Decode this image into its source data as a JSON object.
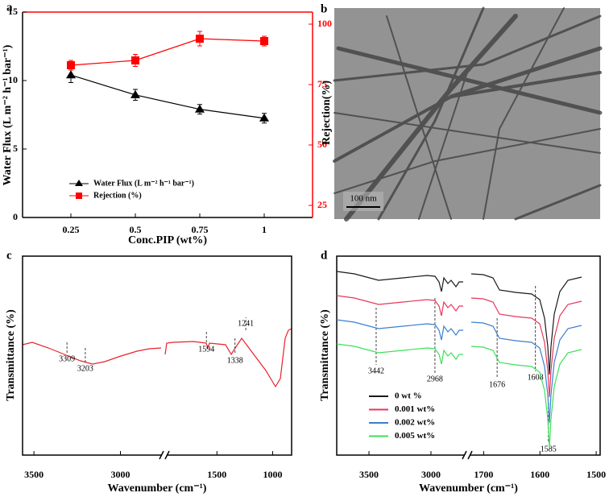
{
  "chart_data": [
    {
      "type": "line",
      "panel_label": "a",
      "x_label": "Conc.PIP  (wt%)",
      "y_label": "Water Flux (L m⁻² h⁻¹ bar⁻¹)",
      "y2_label": "Rejection(%)",
      "categories": [
        "0.25",
        "0.5",
        "0.75",
        "1"
      ],
      "series": [
        {
          "name": "Water Flux (L m⁻² h⁻¹ bar⁻¹)",
          "color": "#000000",
          "marker": "triangle",
          "values": [
            10.4,
            8.95,
            7.9,
            7.25
          ],
          "errors": [
            0.55,
            0.4,
            0.35,
            0.35
          ]
        },
        {
          "name": "Rejection (%)",
          "color": "#ff0000",
          "marker": "square",
          "axis": "y2",
          "values": [
            83,
            85,
            94,
            93
          ],
          "errors": [
            2,
            2.5,
            3,
            2
          ]
        }
      ],
      "ylim": [
        0,
        15
      ],
      "yticks": [
        0,
        5,
        10,
        15
      ],
      "y2lim": [
        20,
        105
      ],
      "y2ticks": [
        25,
        50,
        75,
        100
      ],
      "y2_color": "#ff0000",
      "legend": "lower left"
    },
    {
      "type": "spectrum",
      "panel_label": "c",
      "x_label": "Wavenumber (cm⁻¹)",
      "y_label": "Transmittance (%)",
      "color": "#e8222d",
      "x_segments": [
        {
          "xlim": [
            3566,
            2760
          ],
          "xticks": [
            3500,
            3000
          ]
        },
        {
          "xlim": [
            1950,
            830
          ],
          "xticks": [
            1500,
            1000
          ]
        }
      ],
      "peaks": [
        3309,
        3203,
        1594,
        1338,
        1241
      ]
    },
    {
      "type": "spectrum",
      "panel_label": "d",
      "x_label": "Wavenumber (cm⁻¹)",
      "y_label": "Transmittance (%)",
      "x_segments": [
        {
          "xlim": [
            3760,
            2740
          ],
          "xticks": [
            3500,
            3000
          ]
        },
        {
          "xlim": [
            1722,
            1493
          ],
          "xticks": [
            1700,
            1600,
            1500
          ]
        }
      ],
      "peaks": [
        3442,
        2968,
        1676,
        1608,
        1585
      ],
      "legend": [
        {
          "name": "0 wt %",
          "color": "#1a1a1a"
        },
        {
          "name": "0.001 wt%",
          "color": "#e8375a"
        },
        {
          "name": "0.002 wt%",
          "color": "#3a7fd0"
        },
        {
          "name": "0.005 wt%",
          "color": "#3ee05a"
        }
      ]
    }
  ],
  "image": {
    "panel_label": "b",
    "scale_bar": "100 nm"
  }
}
